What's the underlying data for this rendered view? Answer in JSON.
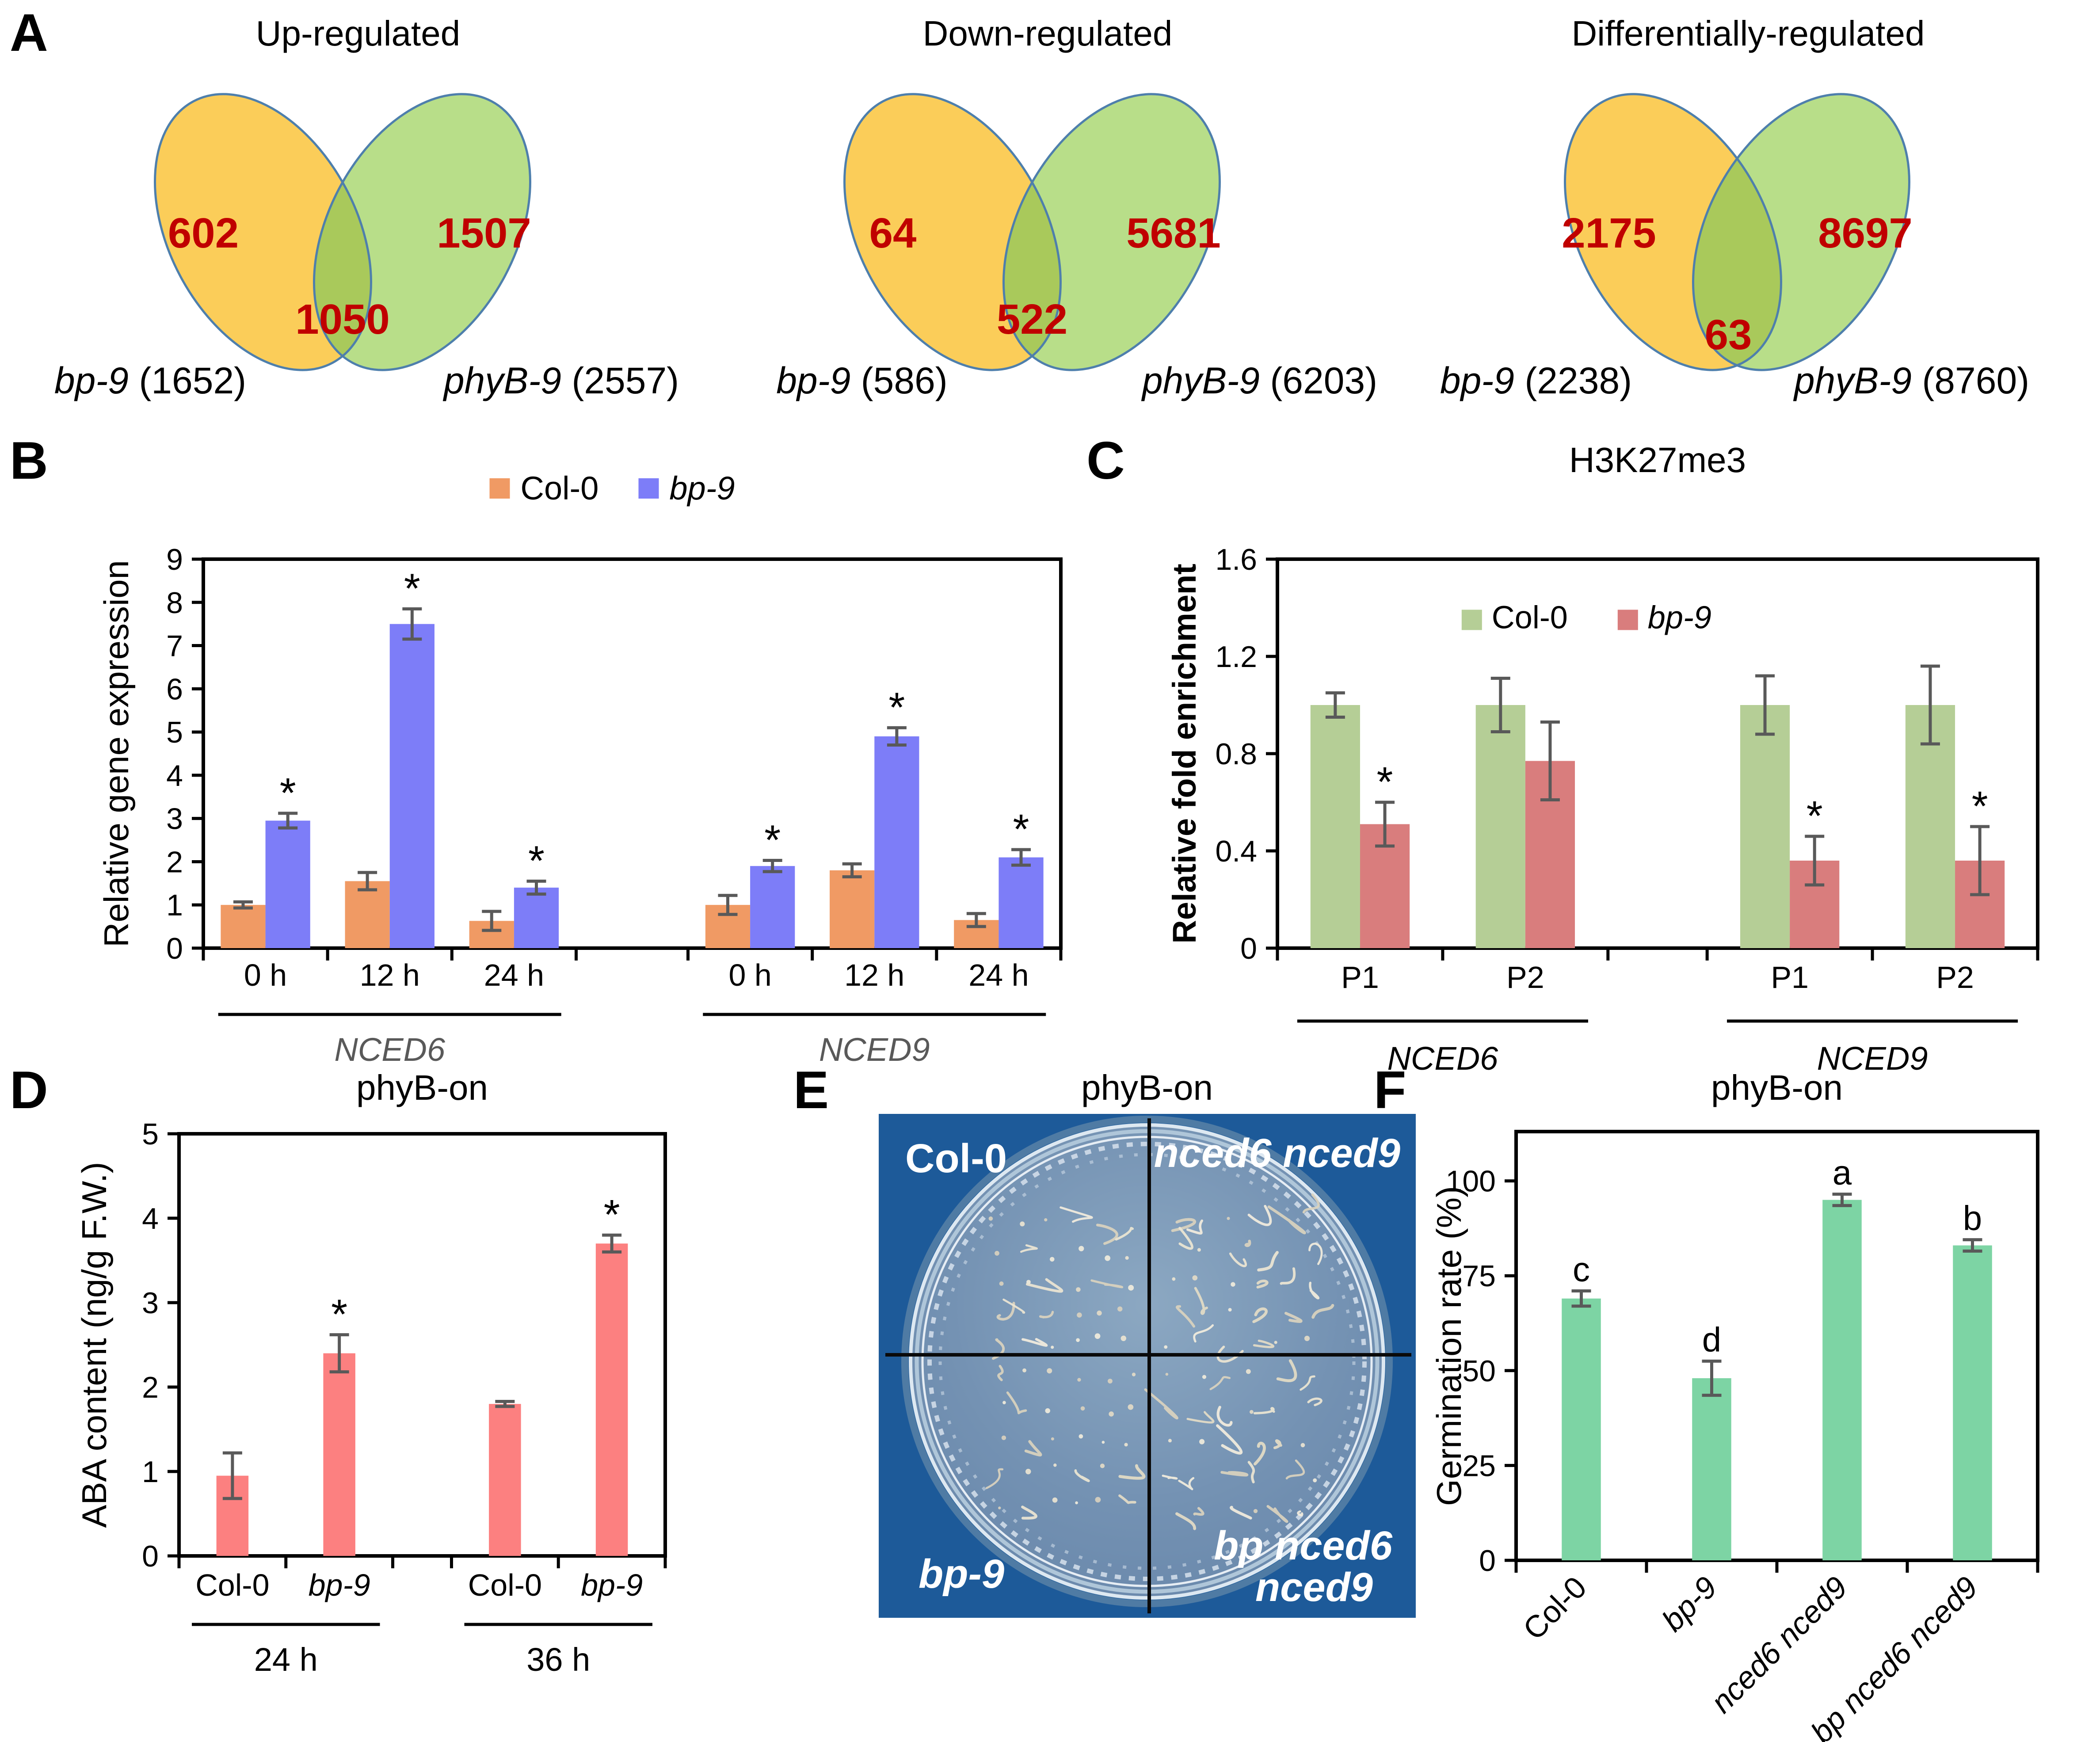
{
  "panel_letters": {
    "A": "A",
    "B": "B",
    "C": "C",
    "D": "D",
    "E": "E",
    "F": "F"
  },
  "venn_colors": {
    "set_a_fill": "#FBCD59",
    "set_b_fill": "#B2DB7F",
    "overlap_fill": "#A9C95B",
    "outline": "#4E7FAC",
    "count_color": "#C00000"
  },
  "venns": [
    {
      "title": "Up-regulated",
      "left_count": "602",
      "overlap_count": "1050",
      "right_count": "1507",
      "left_label_italic": "bp-9",
      "left_label_rest": " (1652)",
      "right_label_italic": "phyB-9",
      "right_label_rest": " (2557)"
    },
    {
      "title": "Down-regulated",
      "left_count": "64",
      "overlap_count": "522",
      "right_count": "5681",
      "left_label_italic": "bp-9",
      "left_label_rest": " (586)",
      "right_label_italic": "phyB-9",
      "right_label_rest": " (6203)"
    },
    {
      "title": "Differentially-regulated",
      "left_count": "2175",
      "overlap_count": "63",
      "right_count": "8697",
      "left_label_italic": "bp-9",
      "left_label_rest": " (2238)",
      "right_label_italic": "phyB-9",
      "right_label_rest": " (8760)"
    }
  ],
  "chart_data": [
    {
      "id": "B",
      "type": "bar",
      "title": "",
      "ylabel": "Relative gene expression",
      "ylabel_bold": false,
      "ylim": [
        0,
        9
      ],
      "yticks": [
        "0",
        "1",
        "2",
        "3",
        "4",
        "5",
        "6",
        "7",
        "8",
        "9"
      ],
      "series_colors": [
        "#F09A64",
        "#7D7DF8"
      ],
      "legend": {
        "pos": "above",
        "items": [
          {
            "name": "Col-0",
            "color": "#F09A64",
            "italic": false
          },
          {
            "name": "bp-9",
            "color": "#7D7DF8",
            "italic": true
          }
        ]
      },
      "groups": [
        {
          "label": "NCED6",
          "label_italic": true,
          "label_color": "#595959",
          "cells": [
            {
              "xlabel": "0 h",
              "italic": false,
              "bars": [
                {
                  "v": 1.0,
                  "e": 0.07,
                  "mark": ""
                },
                {
                  "v": 2.95,
                  "e": 0.17,
                  "mark": "*"
                }
              ]
            },
            {
              "xlabel": "12 h",
              "italic": false,
              "bars": [
                {
                  "v": 1.55,
                  "e": 0.2,
                  "mark": ""
                },
                {
                  "v": 7.5,
                  "e": 0.35,
                  "mark": "*"
                }
              ]
            },
            {
              "xlabel": "24 h",
              "italic": false,
              "bars": [
                {
                  "v": 0.63,
                  "e": 0.22,
                  "mark": ""
                },
                {
                  "v": 1.4,
                  "e": 0.15,
                  "mark": "*"
                }
              ]
            }
          ]
        },
        {
          "label": "NCED9",
          "label_italic": true,
          "label_color": "#595959",
          "cells": [
            {
              "xlabel": "0 h",
              "italic": false,
              "bars": [
                {
                  "v": 1.0,
                  "e": 0.22,
                  "mark": ""
                },
                {
                  "v": 1.9,
                  "e": 0.13,
                  "mark": "*"
                }
              ]
            },
            {
              "xlabel": "12 h",
              "italic": false,
              "bars": [
                {
                  "v": 1.8,
                  "e": 0.15,
                  "mark": ""
                },
                {
                  "v": 4.9,
                  "e": 0.2,
                  "mark": "*"
                }
              ]
            },
            {
              "xlabel": "24 h",
              "italic": false,
              "bars": [
                {
                  "v": 0.65,
                  "e": 0.15,
                  "mark": ""
                },
                {
                  "v": 2.1,
                  "e": 0.18,
                  "mark": "*"
                }
              ]
            }
          ]
        }
      ]
    },
    {
      "id": "C",
      "type": "bar",
      "title": "H3K27me3",
      "ylabel": "Relative fold enrichment",
      "ylabel_bold": true,
      "ylim": [
        0,
        1.6
      ],
      "yticks": [
        "0",
        "0.4",
        "0.8",
        "1.2",
        "1.6"
      ],
      "series_colors": [
        "#B5CE96",
        "#D97D7D"
      ],
      "legend": {
        "pos": "inside",
        "items": [
          {
            "name": "Col-0",
            "color": "#B5CE96",
            "italic": false
          },
          {
            "name": "bp-9",
            "color": "#D97D7D",
            "italic": true
          }
        ]
      },
      "groups": [
        {
          "label": "NCED6",
          "label_italic": true,
          "label_color": "#000000",
          "cells": [
            {
              "xlabel": "P1",
              "italic": false,
              "bars": [
                {
                  "v": 1.0,
                  "e": 0.05,
                  "mark": ""
                },
                {
                  "v": 0.51,
                  "e": 0.09,
                  "mark": "*"
                }
              ]
            },
            {
              "xlabel": "P2",
              "italic": false,
              "bars": [
                {
                  "v": 1.0,
                  "e": 0.11,
                  "mark": ""
                },
                {
                  "v": 0.77,
                  "e": 0.16,
                  "mark": ""
                }
              ]
            }
          ]
        },
        {
          "label": "NCED9",
          "label_italic": true,
          "label_color": "#000000",
          "cells": [
            {
              "xlabel": "P1",
              "italic": false,
              "bars": [
                {
                  "v": 1.0,
                  "e": 0.12,
                  "mark": ""
                },
                {
                  "v": 0.36,
                  "e": 0.1,
                  "mark": "*"
                }
              ]
            },
            {
              "xlabel": "P2",
              "italic": false,
              "bars": [
                {
                  "v": 1.0,
                  "e": 0.16,
                  "mark": ""
                },
                {
                  "v": 0.36,
                  "e": 0.14,
                  "mark": "*"
                }
              ]
            }
          ]
        }
      ]
    },
    {
      "id": "D",
      "type": "bar",
      "title": "phyB-on",
      "ylabel": "ABA content (ng/g F.W.)",
      "ylabel_bold": false,
      "ylim": [
        0,
        5
      ],
      "yticks": [
        "0",
        "1",
        "2",
        "3",
        "4",
        "5"
      ],
      "series_colors": [
        "#FC8080"
      ],
      "legend": null,
      "groups": [
        {
          "label": "24 h",
          "label_italic": false,
          "label_color": "#000000",
          "cells": [
            {
              "xlabel": "Col-0",
              "italic": false,
              "bars": [
                {
                  "v": 0.95,
                  "e": 0.27,
                  "mark": ""
                }
              ]
            },
            {
              "xlabel": "bp-9",
              "italic": true,
              "bars": [
                {
                  "v": 2.4,
                  "e": 0.22,
                  "mark": "*"
                }
              ]
            }
          ]
        },
        {
          "label": "36 h",
          "label_italic": false,
          "label_color": "#000000",
          "cells": [
            {
              "xlabel": "Col-0",
              "italic": false,
              "bars": [
                {
                  "v": 1.8,
                  "e": 0.03,
                  "mark": ""
                }
              ]
            },
            {
              "xlabel": "bp-9",
              "italic": true,
              "bars": [
                {
                  "v": 3.7,
                  "e": 0.1,
                  "mark": "*"
                }
              ]
            }
          ]
        }
      ]
    },
    {
      "id": "F",
      "type": "bar",
      "title": "phyB-on",
      "ylabel": "Germination rate (%)",
      "ylabel_bold": false,
      "ylim": [
        0,
        113
      ],
      "yticks": [
        "0",
        "25",
        "50",
        "75",
        "100"
      ],
      "series_colors": [
        "#7DD4A4"
      ],
      "legend": null,
      "xlabel_rotate": -45,
      "groups": [
        {
          "label": "",
          "label_italic": false,
          "label_color": "#000000",
          "cells": [
            {
              "xlabel": "Col-0",
              "italic": false,
              "bars": [
                {
                  "v": 69,
                  "e": 2,
                  "mark": "c"
                }
              ]
            },
            {
              "xlabel": "bp-9",
              "italic": true,
              "bars": [
                {
                  "v": 48,
                  "e": 4.5,
                  "mark": "d"
                }
              ]
            },
            {
              "xlabel": "nced6 nced9",
              "italic": true,
              "bars": [
                {
                  "v": 95,
                  "e": 1.5,
                  "mark": "a"
                }
              ]
            },
            {
              "xlabel": "bp nced6 nced9",
              "italic": true,
              "bars": [
                {
                  "v": 83,
                  "e": 1.5,
                  "mark": "b"
                }
              ]
            }
          ]
        }
      ]
    }
  ],
  "photo_panel": {
    "title": "phyB-on",
    "labels": {
      "top_left": "Col-0",
      "top_right": "nced6 nced9",
      "bottom_left": "bp-9",
      "bottom_right_line1": "bp nced6",
      "bottom_right_line2": "nced9"
    },
    "colors": {
      "background": "#1D5A99",
      "dish": "#7492B3",
      "rim": "#DDE8F1",
      "seedling": "#EDE6D2",
      "divider": "#0A0A0A",
      "label": "#FFFFFF"
    }
  }
}
